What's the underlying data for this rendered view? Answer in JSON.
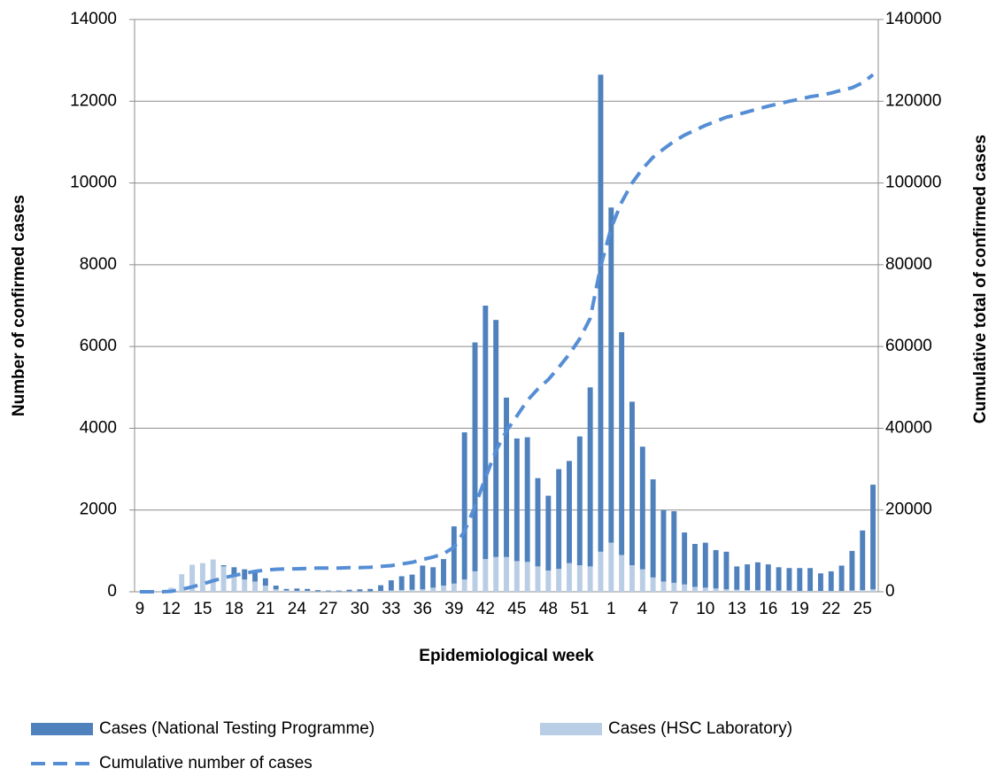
{
  "chart_data": {
    "type": "bar-line",
    "x_label": "Epidemiological week",
    "y_label": "Number of confirmed cases",
    "y2_label": "Cumulative total of confirmed cases",
    "categories": [
      "9",
      null,
      null,
      "12",
      null,
      null,
      "15",
      null,
      null,
      "18",
      null,
      null,
      "21",
      null,
      null,
      "24",
      null,
      null,
      "27",
      null,
      null,
      "30",
      null,
      null,
      "33",
      null,
      null,
      "36",
      null,
      null,
      "39",
      null,
      null,
      "42",
      null,
      null,
      "45",
      null,
      null,
      "48",
      null,
      null,
      "51",
      null,
      null,
      "1",
      null,
      null,
      "4",
      null,
      null,
      "7",
      null,
      null,
      "10",
      null,
      null,
      "13",
      null,
      null,
      "16",
      null,
      null,
      "19",
      null,
      null,
      "22",
      null,
      null,
      "25",
      null
    ],
    "series": [
      {
        "name": "Cases (National Testing Programme)",
        "kind": "bar",
        "color": "#4f81bd",
        "values": [
          0,
          0,
          0,
          0,
          0,
          0,
          0,
          0,
          30,
          180,
          250,
          250,
          180,
          90,
          40,
          60,
          50,
          30,
          20,
          20,
          40,
          50,
          60,
          140,
          250,
          340,
          370,
          580,
          500,
          650,
          1400,
          3600,
          5600,
          6200,
          5800,
          3900,
          3000,
          3050,
          2160,
          1830,
          2440,
          2500,
          3150,
          4380,
          11670,
          8200,
          5450,
          4000,
          3000,
          2400,
          1750,
          1750,
          1270,
          1050,
          1100,
          940,
          920,
          570,
          630,
          680,
          640,
          570,
          550,
          560,
          560,
          430,
          480,
          620,
          970,
          1460,
          2560
        ]
      },
      {
        "name": "Cases (HSC Laboratory)",
        "kind": "bar",
        "color": "#b9cde5",
        "values": [
          0,
          0,
          20,
          100,
          430,
          660,
          700,
          790,
          620,
          420,
          300,
          250,
          150,
          60,
          30,
          20,
          20,
          10,
          10,
          10,
          10,
          10,
          10,
          20,
          30,
          40,
          50,
          60,
          100,
          150,
          200,
          300,
          500,
          800,
          850,
          850,
          750,
          730,
          620,
          520,
          560,
          700,
          650,
          620,
          980,
          1200,
          900,
          650,
          550,
          350,
          250,
          220,
          180,
          120,
          100,
          80,
          60,
          50,
          40,
          40,
          30,
          30,
          30,
          20,
          20,
          20,
          20,
          20,
          30,
          40,
          60
        ]
      },
      {
        "name": "Cumulative number of cases",
        "kind": "line",
        "axis": "y2",
        "color": "#558ed5",
        "values": [
          0,
          0,
          0,
          100,
          600,
          1200,
          1900,
          2700,
          3400,
          4000,
          4500,
          5000,
          5300,
          5500,
          5600,
          5600,
          5700,
          5800,
          5800,
          5800,
          5900,
          5900,
          6000,
          6200,
          6400,
          6800,
          7200,
          7900,
          8500,
          9300,
          10900,
          14800,
          20900,
          27900,
          34500,
          39300,
          43000,
          46800,
          49600,
          51900,
          54900,
          58100,
          61900,
          66900,
          79600,
          89000,
          95300,
          100000,
          103500,
          106300,
          108300,
          110200,
          111700,
          112900,
          114100,
          115100,
          116100,
          116700,
          117400,
          118100,
          118800,
          119400,
          120000,
          120500,
          121100,
          121500,
          122000,
          122700,
          123300,
          124500,
          126500
        ]
      }
    ],
    "ylim": [
      0,
      14000
    ],
    "yticks": [
      0,
      2000,
      4000,
      6000,
      8000,
      10000,
      12000,
      14000
    ],
    "y2lim": [
      0,
      140000
    ],
    "y2ticks": [
      0,
      20000,
      40000,
      60000,
      80000,
      100000,
      120000,
      140000
    ],
    "grid": true,
    "legend": "bottom"
  }
}
